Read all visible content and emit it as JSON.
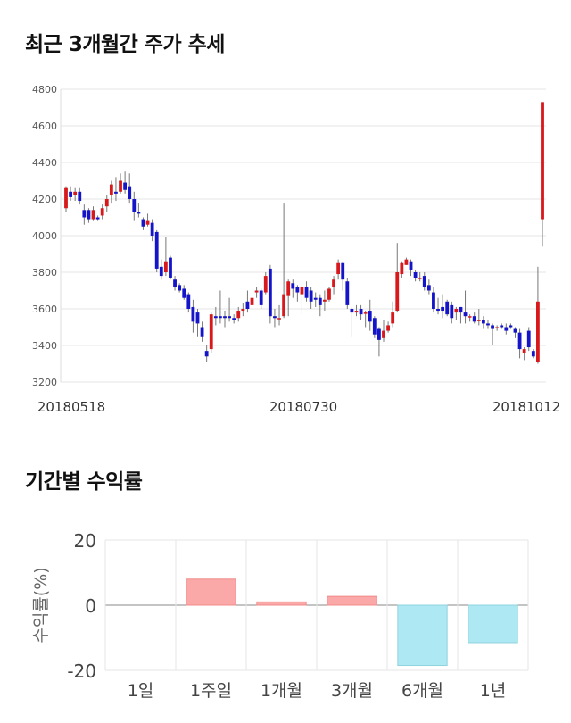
{
  "section_titles": {
    "price_trend": "최근 3개월간 주가 추세",
    "period_returns": "기간별 수익률"
  },
  "colors": {
    "up": "#d7191c",
    "down": "#1414c8",
    "positive_bar": "#fba8a8",
    "negative_bar": "#aee8f2",
    "grid": "#e6e6e6"
  },
  "chart_data": [
    {
      "type": "candlestick",
      "title": "최근 3개월간 주가 추세",
      "y_ticks": [
        "4800",
        "4600",
        "4400",
        "4200",
        "4000",
        "3800",
        "3600",
        "3400",
        "3200"
      ],
      "ylim": [
        3200,
        4800
      ],
      "x_labels": [
        "20180518",
        "20180730",
        "20181012"
      ],
      "grid": true,
      "candles": [
        [
          4150,
          4260,
          4130,
          4270
        ],
        [
          4240,
          4210,
          4190,
          4270
        ],
        [
          4220,
          4240,
          4190,
          4260
        ],
        [
          4240,
          4190,
          4170,
          4260
        ],
        [
          4140,
          4100,
          4060,
          4170
        ],
        [
          4140,
          4090,
          4070,
          4150
        ],
        [
          4090,
          4140,
          4080,
          4160
        ],
        [
          4100,
          4090,
          4080,
          4110
        ],
        [
          4110,
          4150,
          4090,
          4170
        ],
        [
          4160,
          4200,
          4130,
          4220
        ],
        [
          4220,
          4280,
          4180,
          4300
        ],
        [
          4240,
          4230,
          4190,
          4320
        ],
        [
          4240,
          4300,
          4230,
          4340
        ],
        [
          4290,
          4250,
          4230,
          4350
        ],
        [
          4270,
          4200,
          4180,
          4340
        ],
        [
          4200,
          4130,
          4080,
          4240
        ],
        [
          4130,
          4120,
          4100,
          4180
        ],
        [
          4090,
          4050,
          4030,
          4100
        ],
        [
          4060,
          4080,
          4050,
          4120
        ],
        [
          4070,
          4000,
          3970,
          4090
        ],
        [
          4020,
          3820,
          3800,
          4030
        ],
        [
          3830,
          3780,
          3760,
          3870
        ],
        [
          3800,
          3860,
          3780,
          3990
        ],
        [
          3880,
          3770,
          3760,
          3890
        ],
        [
          3760,
          3720,
          3700,
          3780
        ],
        [
          3730,
          3700,
          3690,
          3740
        ],
        [
          3710,
          3660,
          3650,
          3730
        ],
        [
          3680,
          3600,
          3580,
          3690
        ],
        [
          3610,
          3530,
          3470,
          3650
        ],
        [
          3580,
          3520,
          3450,
          3600
        ],
        [
          3500,
          3450,
          3420,
          3530
        ],
        [
          3370,
          3340,
          3310,
          3400
        ],
        [
          3380,
          3570,
          3360,
          3580
        ],
        [
          3560,
          3550,
          3510,
          3610
        ],
        [
          3560,
          3550,
          3520,
          3700
        ],
        [
          3560,
          3550,
          3500,
          3590
        ],
        [
          3560,
          3550,
          3530,
          3660
        ],
        [
          3550,
          3540,
          3520,
          3570
        ],
        [
          3550,
          3590,
          3530,
          3610
        ],
        [
          3590,
          3600,
          3560,
          3630
        ],
        [
          3640,
          3600,
          3580,
          3700
        ],
        [
          3620,
          3660,
          3580,
          3680
        ],
        [
          3690,
          3700,
          3660,
          3720
        ],
        [
          3700,
          3620,
          3600,
          3710
        ],
        [
          3690,
          3780,
          3680,
          3800
        ],
        [
          3820,
          3560,
          3520,
          3840
        ],
        [
          3560,
          3550,
          3500,
          3600
        ],
        [
          3550,
          3550,
          3510,
          3620
        ],
        [
          3560,
          3680,
          3550,
          4180
        ],
        [
          3670,
          3750,
          3560,
          3760
        ],
        [
          3740,
          3710,
          3660,
          3760
        ],
        [
          3720,
          3690,
          3640,
          3730
        ],
        [
          3680,
          3720,
          3570,
          3740
        ],
        [
          3720,
          3660,
          3640,
          3750
        ],
        [
          3700,
          3640,
          3600,
          3720
        ],
        [
          3660,
          3650,
          3610,
          3690
        ],
        [
          3660,
          3620,
          3560,
          3680
        ],
        [
          3640,
          3650,
          3590,
          3700
        ],
        [
          3650,
          3710,
          3640,
          3720
        ],
        [
          3720,
          3760,
          3680,
          3780
        ],
        [
          3790,
          3850,
          3760,
          3870
        ],
        [
          3850,
          3760,
          3700,
          3860
        ],
        [
          3750,
          3620,
          3600,
          3770
        ],
        [
          3600,
          3580,
          3450,
          3610
        ],
        [
          3580,
          3590,
          3560,
          3620
        ],
        [
          3600,
          3570,
          3540,
          3620
        ],
        [
          3580,
          3580,
          3500,
          3590
        ],
        [
          3590,
          3530,
          3480,
          3650
        ],
        [
          3550,
          3460,
          3440,
          3560
        ],
        [
          3490,
          3430,
          3340,
          3500
        ],
        [
          3440,
          3480,
          3420,
          3540
        ],
        [
          3480,
          3510,
          3470,
          3530
        ],
        [
          3520,
          3580,
          3500,
          3640
        ],
        [
          3590,
          3800,
          3580,
          3960
        ],
        [
          3790,
          3850,
          3770,
          3860
        ],
        [
          3840,
          3870,
          3840,
          3880
        ],
        [
          3860,
          3810,
          3780,
          3870
        ],
        [
          3800,
          3770,
          3750,
          3810
        ],
        [
          3770,
          3770,
          3750,
          3800
        ],
        [
          3780,
          3720,
          3700,
          3800
        ],
        [
          3730,
          3700,
          3680,
          3760
        ],
        [
          3690,
          3600,
          3580,
          3720
        ],
        [
          3600,
          3590,
          3570,
          3660
        ],
        [
          3610,
          3590,
          3550,
          3680
        ],
        [
          3640,
          3570,
          3560,
          3650
        ],
        [
          3620,
          3550,
          3520,
          3640
        ],
        [
          3580,
          3600,
          3540,
          3610
        ],
        [
          3610,
          3580,
          3520,
          3610
        ],
        [
          3580,
          3560,
          3520,
          3700
        ],
        [
          3560,
          3560,
          3530,
          3570
        ],
        [
          3560,
          3530,
          3520,
          3580
        ],
        [
          3540,
          3540,
          3510,
          3600
        ],
        [
          3540,
          3520,
          3490,
          3560
        ],
        [
          3520,
          3510,
          3490,
          3540
        ],
        [
          3510,
          3490,
          3400,
          3520
        ],
        [
          3500,
          3500,
          3480,
          3510
        ],
        [
          3510,
          3500,
          3490,
          3520
        ],
        [
          3500,
          3480,
          3460,
          3520
        ],
        [
          3510,
          3500,
          3490,
          3520
        ],
        [
          3490,
          3470,
          3440,
          3500
        ],
        [
          3470,
          3380,
          3330,
          3490
        ],
        [
          3360,
          3380,
          3320,
          3390
        ],
        [
          3480,
          3390,
          3370,
          3500
        ],
        [
          3370,
          3340,
          3330,
          3380
        ],
        [
          3310,
          3640,
          3300,
          3830
        ],
        [
          4090,
          4730,
          3940,
          4730
        ]
      ]
    },
    {
      "type": "bar",
      "title": "기간별 수익률",
      "ylabel": "수익률(%)",
      "categories": [
        "1일",
        "1주일",
        "1개월",
        "3개월",
        "6개월",
        "1년"
      ],
      "values": [
        0.0,
        8.0,
        1.0,
        2.7,
        -18.5,
        -11.5
      ],
      "y_ticks": [
        "20",
        "0",
        "-20"
      ],
      "ylim": [
        -20,
        20
      ],
      "grid": true
    }
  ]
}
